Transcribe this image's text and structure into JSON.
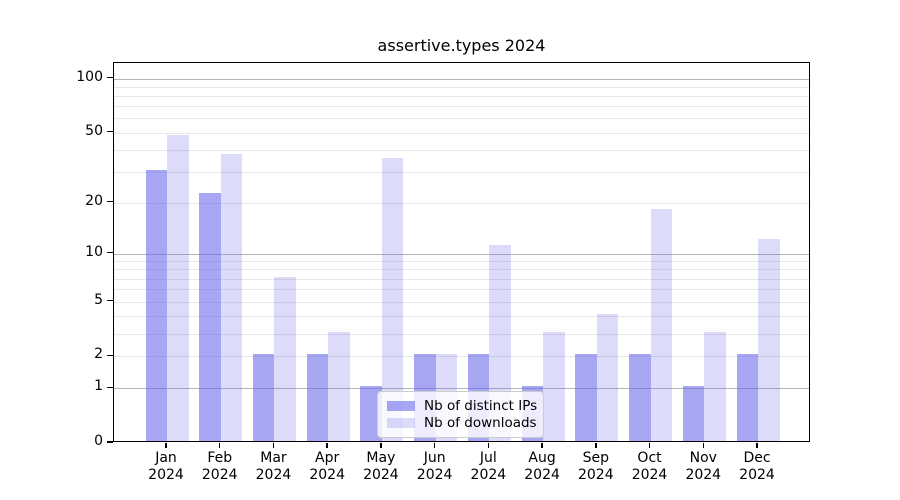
{
  "chart_data": {
    "type": "bar",
    "title": "assertive.types 2024",
    "categories": [
      "Jan 2024",
      "Feb 2024",
      "Mar 2024",
      "Apr 2024",
      "May 2024",
      "Jun 2024",
      "Jul 2024",
      "Aug 2024",
      "Sep 2024",
      "Oct 2024",
      "Nov 2024",
      "Dec 2024"
    ],
    "x_tick_months": [
      "Jan",
      "Feb",
      "Mar",
      "Apr",
      "May",
      "Jun",
      "Jul",
      "Aug",
      "Sep",
      "Oct",
      "Nov",
      "Dec"
    ],
    "x_tick_year": "2024",
    "series": [
      {
        "name": "Nb of distinct IPs",
        "color": "rgba(102,102,235,0.58)",
        "values": [
          30,
          22,
          2,
          2,
          1,
          2,
          2,
          1,
          2,
          2,
          1,
          2
        ]
      },
      {
        "name": "Nb of downloads",
        "color": "rgba(102,102,235,0.23)",
        "values": [
          47,
          37,
          7,
          3,
          35,
          2,
          11,
          3,
          4,
          18,
          3,
          12
        ]
      }
    ],
    "axes": {
      "y_scale": "log1p",
      "y_ticks": [
        0,
        1,
        2,
        5,
        10,
        20,
        50,
        100
      ],
      "y_tick_labels": [
        "0",
        "1",
        "2",
        "5",
        "10",
        "20",
        "50",
        "100"
      ],
      "y_top_value": 122,
      "y_minor_grid": [
        2,
        3,
        4,
        5,
        6,
        7,
        8,
        9,
        20,
        30,
        40,
        50,
        60,
        70,
        80,
        90
      ],
      "y_major_grid": [
        1,
        10,
        100
      ],
      "grid": "on"
    },
    "legend": {
      "position": "lower center-left",
      "entries": [
        "Nb of distinct IPs",
        "Nb of downloads"
      ]
    },
    "colors": {
      "background": "#ffffff",
      "text": "#000000",
      "spine": "#000000",
      "minor_grid": "#e8e8e8",
      "major_grid": "#b5b5b5",
      "legend_border": "#cccccc",
      "bar_distinct_ips": "rgba(102,102,235,0.58)",
      "bar_downloads": "rgba(102,102,235,0.23)"
    }
  }
}
